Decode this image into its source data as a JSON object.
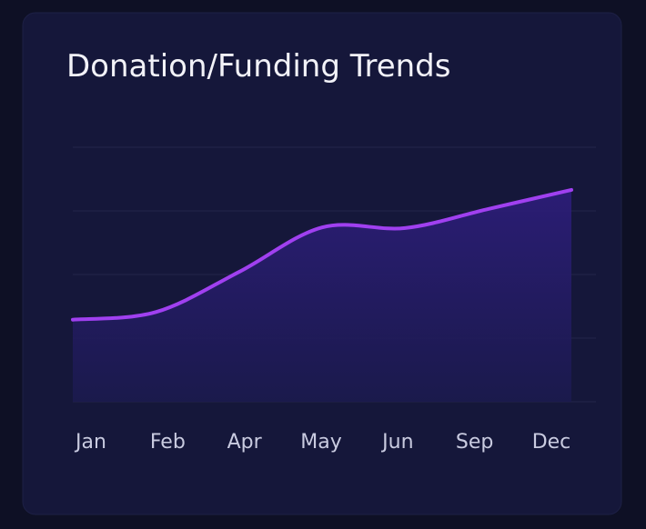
{
  "chart_data": {
    "type": "line",
    "title": "Donation/Funding Trends",
    "categories": [
      "Jan",
      "Feb",
      "Apr",
      "May",
      "Jun",
      "Sep",
      "Dec"
    ],
    "values": [
      1.29,
      1.41,
      2.04,
      2.74,
      2.73,
      3.03,
      3.33
    ],
    "color": "#a040f0",
    "ylim": [
      0,
      4
    ],
    "yticks": [
      0,
      1,
      2,
      3,
      4
    ],
    "grid": true
  }
}
